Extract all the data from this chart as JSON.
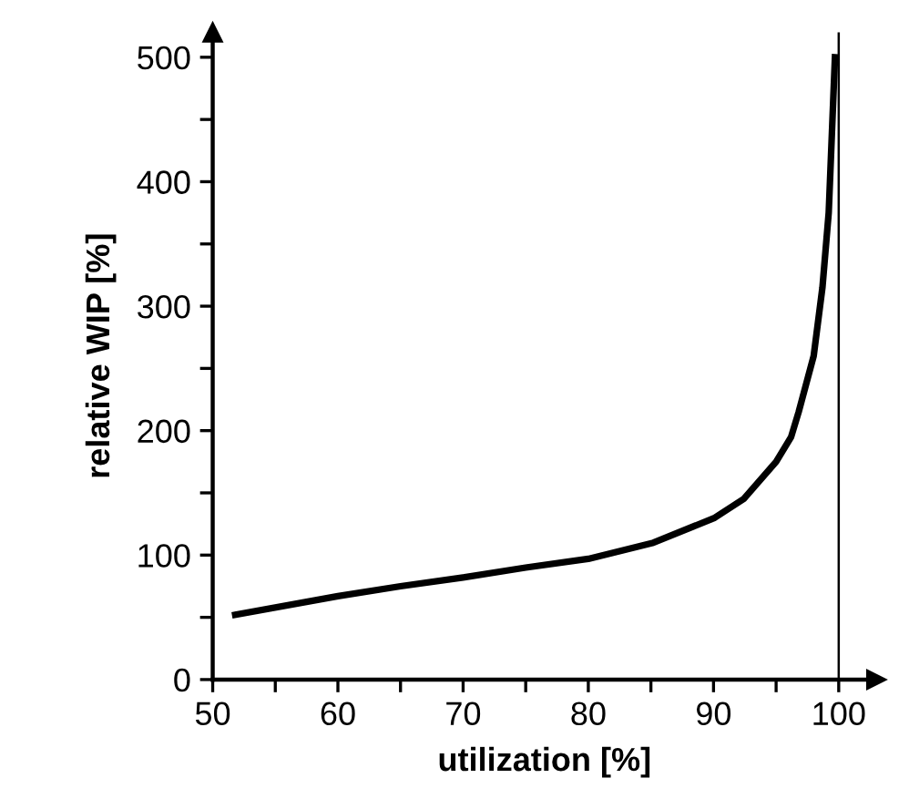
{
  "chart_data": {
    "type": "line",
    "xlabel": "utilization [%]",
    "ylabel": "relative WIP [%]",
    "series": [
      {
        "color": "#000000",
        "x": [
          51.8,
          60,
          65,
          70,
          75,
          80,
          85.2,
          90.1,
          92.4,
          95,
          96.2,
          96.8,
          98,
          98.7,
          99.2,
          99.5,
          99.7
        ],
        "values": [
          52,
          67,
          75,
          82,
          90,
          97,
          110,
          130,
          145,
          175,
          195,
          215,
          260,
          315,
          375,
          450,
          500
        ]
      }
    ],
    "xlim": [
      50,
      103
    ],
    "ylim": [
      0,
      520
    ],
    "xticks": [
      50,
      {
        "value": 55,
        "label": null
      },
      60,
      {
        "value": 65,
        "label": null
      },
      70,
      {
        "value": 75,
        "label": null
      },
      80,
      {
        "value": 85,
        "label": null
      },
      90,
      {
        "value": 95,
        "label": null
      },
      100
    ],
    "yticks": [
      0,
      {
        "value": 50,
        "label": null
      },
      100,
      {
        "value": 150,
        "label": null
      },
      200,
      {
        "value": 250,
        "label": null
      },
      300,
      {
        "value": 350,
        "label": null
      },
      400,
      {
        "value": 450,
        "label": null
      },
      500
    ],
    "ref_lines": [
      {
        "axis": "x",
        "value": 100,
        "color": "#000000",
        "line_style": "solid"
      }
    ],
    "grid": false,
    "legend": false,
    "marker": "none",
    "line_style": "solid"
  }
}
